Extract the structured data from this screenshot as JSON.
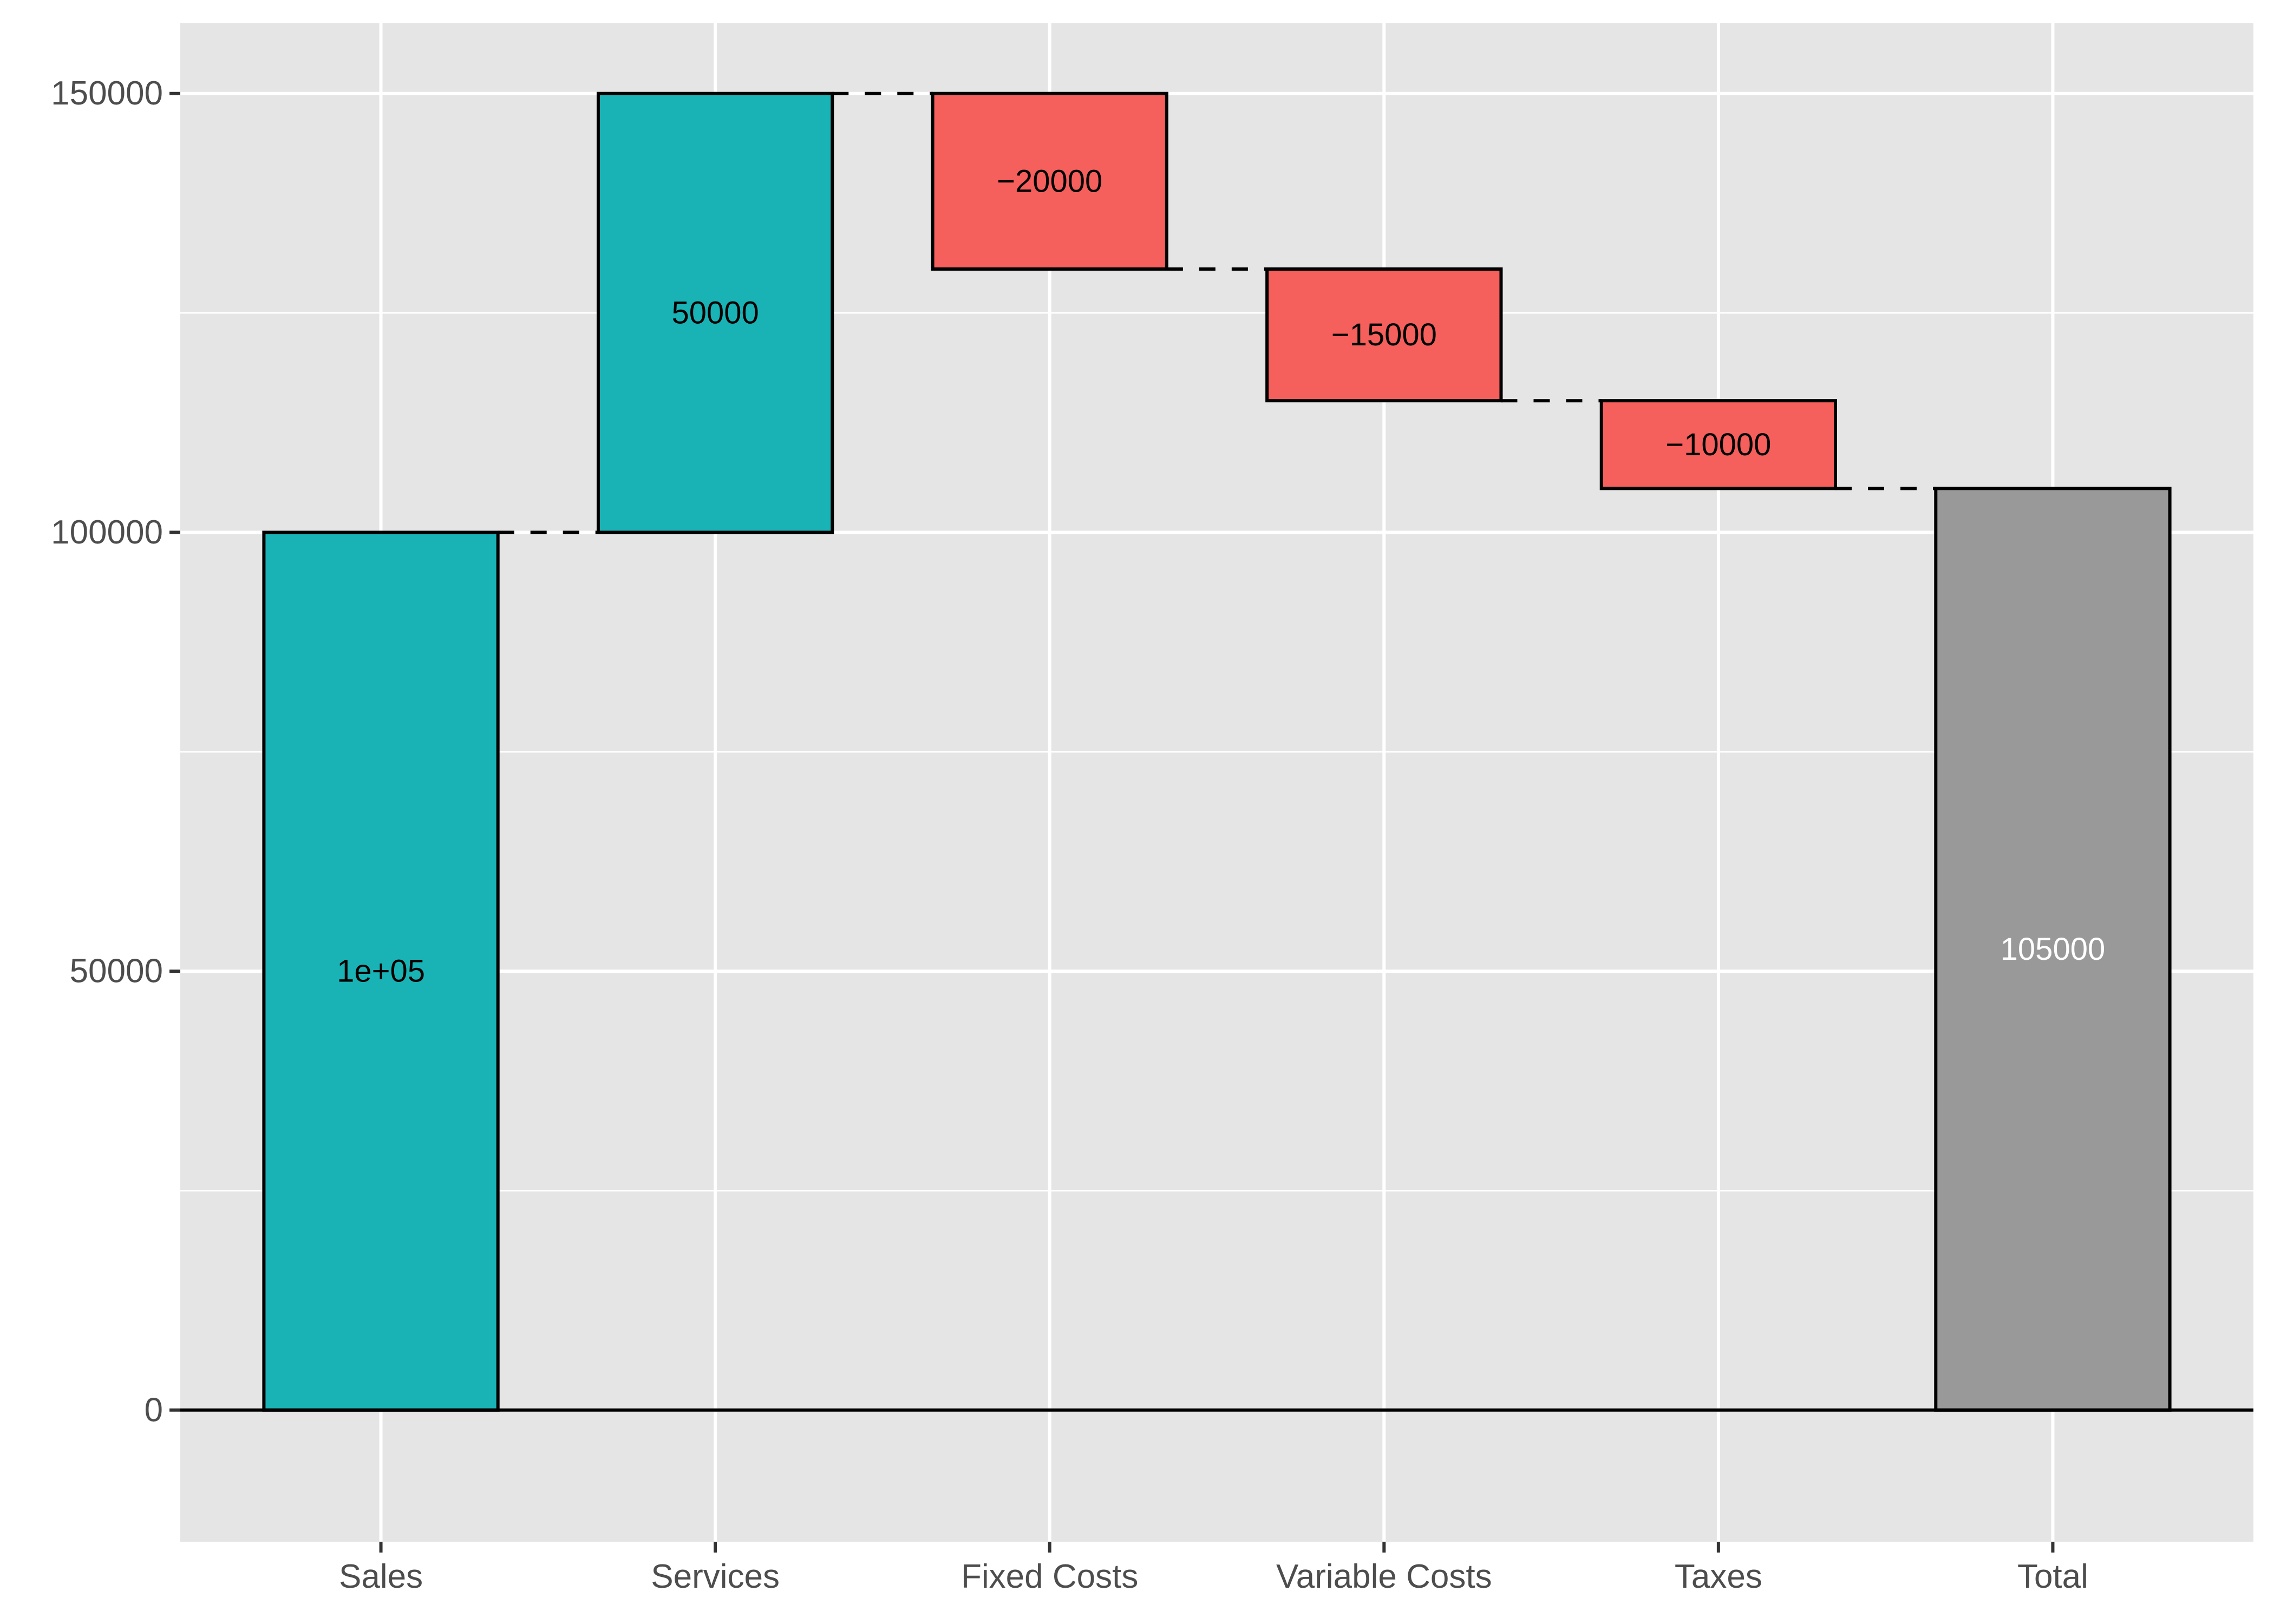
{
  "chart_data": {
    "type": "waterfall",
    "categories": [
      "Sales",
      "Services",
      "Fixed Costs",
      "Variable Costs",
      "Taxes",
      "Total"
    ],
    "values": [
      100000,
      50000,
      -20000,
      -15000,
      -10000,
      105000
    ],
    "bar_labels": [
      "1e+05",
      "50000",
      "−20000",
      "−15000",
      "−10000",
      "105000"
    ],
    "kinds": [
      "increase",
      "increase",
      "decrease",
      "decrease",
      "decrease",
      "total"
    ],
    "title": "",
    "xlabel": "",
    "ylabel": "",
    "ylim": [
      -15000,
      158000
    ],
    "yticks": [
      0,
      50000,
      100000,
      150000
    ],
    "ytick_labels": [
      "0",
      "50000",
      "100000",
      "150000"
    ],
    "grid": true,
    "legend": "none",
    "colors": {
      "increase": "#19B3B6",
      "decrease": "#F55F5C",
      "total": "#999999",
      "panel": "#E5E5E5",
      "grid": "#FFFFFF",
      "outline": "#000000",
      "label_dark": "#000000",
      "label_light": "#FFFFFF"
    }
  }
}
